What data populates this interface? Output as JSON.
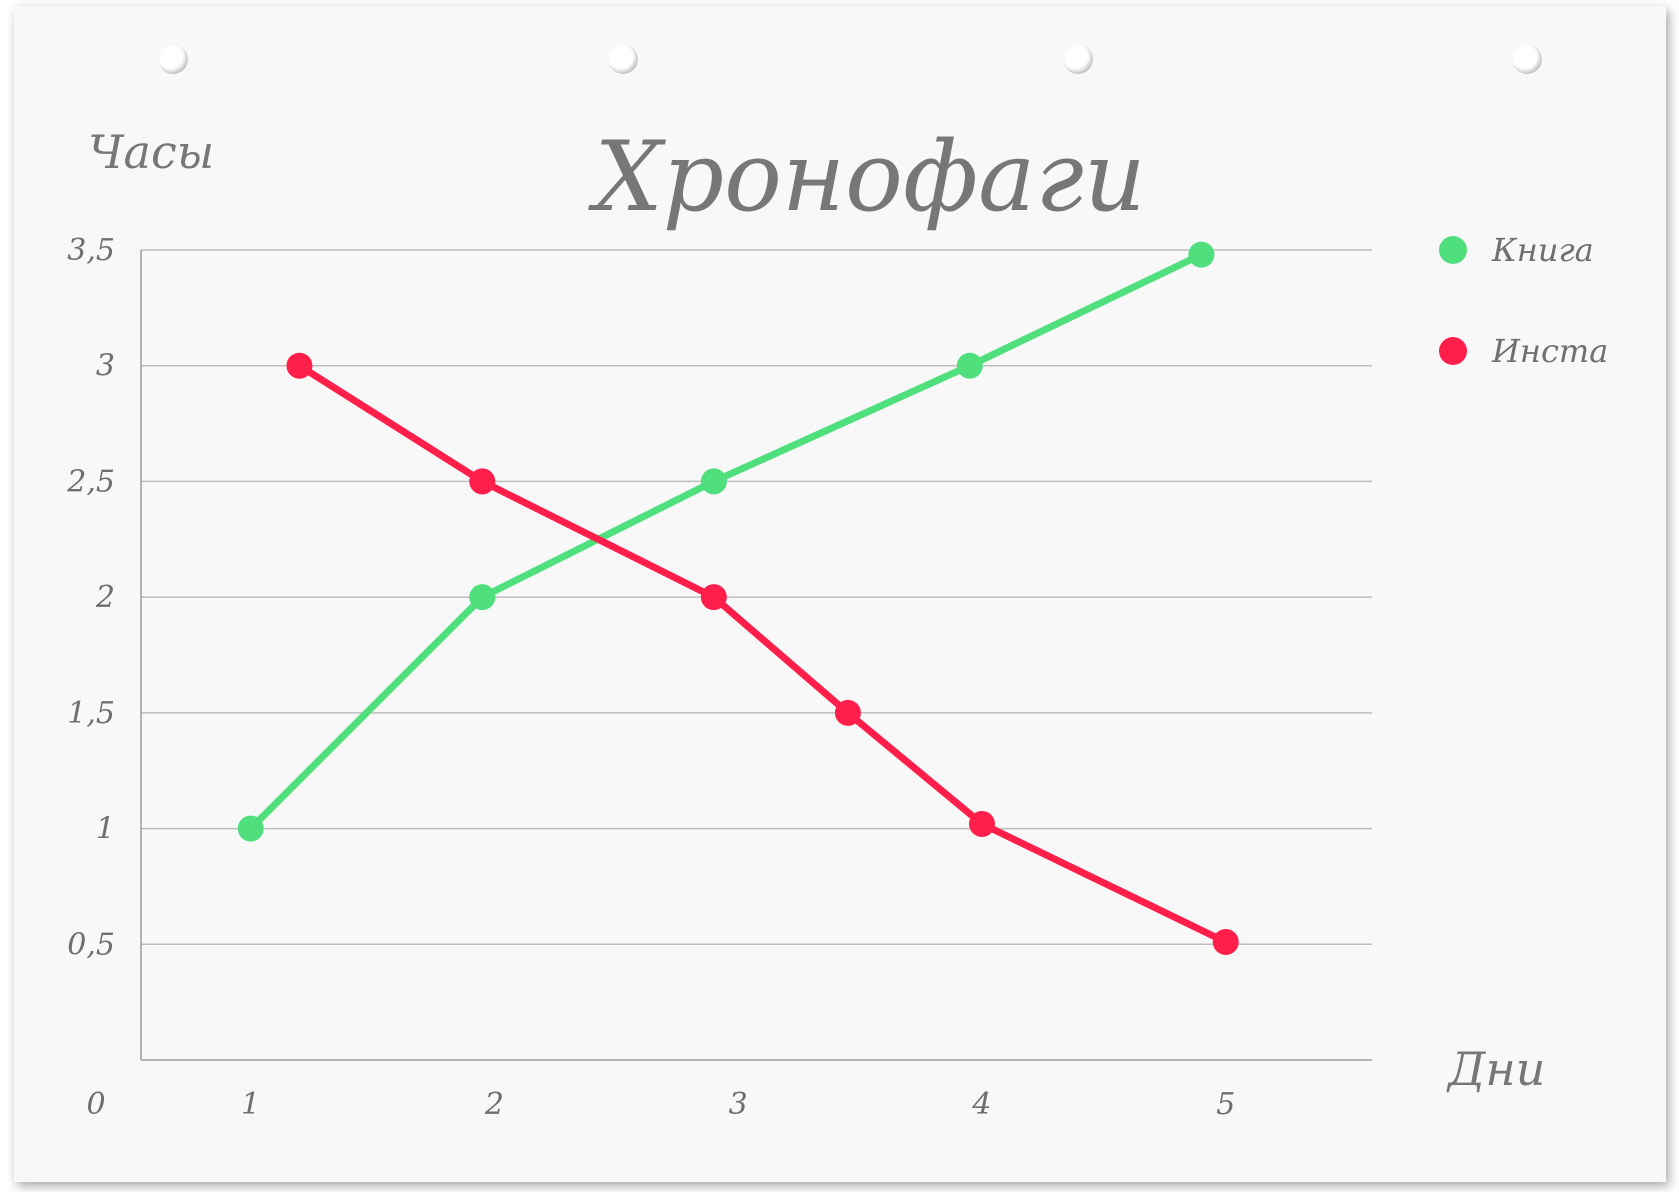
{
  "chart_data": {
    "type": "line",
    "title": "Хронофаги",
    "ylabel": "Часы",
    "xlabel": "Дни",
    "origin_label": "0",
    "xlim": [
      0.55,
      5.6
    ],
    "ylim": [
      0,
      3.5
    ],
    "x_ticks": [
      {
        "value": 1,
        "label": "1"
      },
      {
        "value": 2,
        "label": "2"
      },
      {
        "value": 3,
        "label": "3"
      },
      {
        "value": 4,
        "label": "4"
      },
      {
        "value": 5,
        "label": "5"
      }
    ],
    "y_ticks": [
      {
        "value": 0.5,
        "label": "0,5"
      },
      {
        "value": 1,
        "label": "1"
      },
      {
        "value": 1.5,
        "label": "1,5"
      },
      {
        "value": 2,
        "label": "2"
      },
      {
        "value": 2.5,
        "label": "2,5"
      },
      {
        "value": 3,
        "label": "3"
      },
      {
        "value": 3.5,
        "label": "3,5"
      }
    ],
    "grid": true,
    "legend_position": "right",
    "series": [
      {
        "name": "Книга",
        "color": "#4fe07d",
        "points": [
          [
            1,
            1
          ],
          [
            1.95,
            2
          ],
          [
            2.9,
            2.5
          ],
          [
            3.95,
            3
          ],
          [
            4.9,
            3.48
          ]
        ]
      },
      {
        "name": "Инста",
        "color": "#ff1f4a",
        "points": [
          [
            1.2,
            3
          ],
          [
            1.95,
            2.5
          ],
          [
            2.9,
            2
          ],
          [
            3.45,
            1.5
          ],
          [
            4.0,
            1.02
          ],
          [
            5.0,
            0.51
          ]
        ]
      }
    ]
  }
}
